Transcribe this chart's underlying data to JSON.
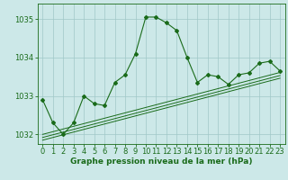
{
  "xlabel": "Graphe pression niveau de la mer (hPa)",
  "x_values": [
    0,
    1,
    2,
    3,
    4,
    5,
    6,
    7,
    8,
    9,
    10,
    11,
    12,
    13,
    14,
    15,
    16,
    17,
    18,
    19,
    20,
    21,
    22,
    23
  ],
  "y_main": [
    1032.9,
    1032.3,
    1032.0,
    1032.3,
    1033.0,
    1032.8,
    1032.75,
    1033.35,
    1033.55,
    1034.1,
    1035.05,
    1035.05,
    1034.9,
    1034.7,
    1034.0,
    1033.35,
    1033.55,
    1033.5,
    1033.3,
    1033.55,
    1033.6,
    1033.85,
    1033.9,
    1033.65
  ],
  "y_trend1": [
    1031.85,
    1031.92,
    1031.99,
    1032.06,
    1032.13,
    1032.2,
    1032.27,
    1032.34,
    1032.41,
    1032.48,
    1032.55,
    1032.62,
    1032.69,
    1032.76,
    1032.83,
    1032.9,
    1032.97,
    1033.04,
    1033.11,
    1033.18,
    1033.25,
    1033.32,
    1033.39,
    1033.46
  ],
  "y_trend2": [
    1031.92,
    1031.99,
    1032.06,
    1032.13,
    1032.2,
    1032.27,
    1032.34,
    1032.41,
    1032.48,
    1032.55,
    1032.62,
    1032.69,
    1032.76,
    1032.83,
    1032.9,
    1032.97,
    1033.04,
    1033.11,
    1033.18,
    1033.25,
    1033.32,
    1033.39,
    1033.46,
    1033.53
  ],
  "y_trend3": [
    1032.0,
    1032.07,
    1032.14,
    1032.21,
    1032.28,
    1032.35,
    1032.42,
    1032.49,
    1032.56,
    1032.63,
    1032.7,
    1032.77,
    1032.84,
    1032.91,
    1032.98,
    1033.05,
    1033.12,
    1033.19,
    1033.26,
    1033.33,
    1033.4,
    1033.47,
    1033.54,
    1033.61
  ],
  "line_color": "#1a6b1a",
  "bg_color": "#cce8e8",
  "grid_color": "#a0c8c8",
  "ylim": [
    1031.75,
    1035.4
  ],
  "yticks": [
    1032,
    1033,
    1034,
    1035
  ],
  "xticks": [
    0,
    1,
    2,
    3,
    4,
    5,
    6,
    7,
    8,
    9,
    10,
    11,
    12,
    13,
    14,
    15,
    16,
    17,
    18,
    19,
    20,
    21,
    22,
    23
  ],
  "xlabel_fontsize": 6.5,
  "tick_fontsize": 6.0,
  "marker": "D",
  "markersize": 2.0
}
